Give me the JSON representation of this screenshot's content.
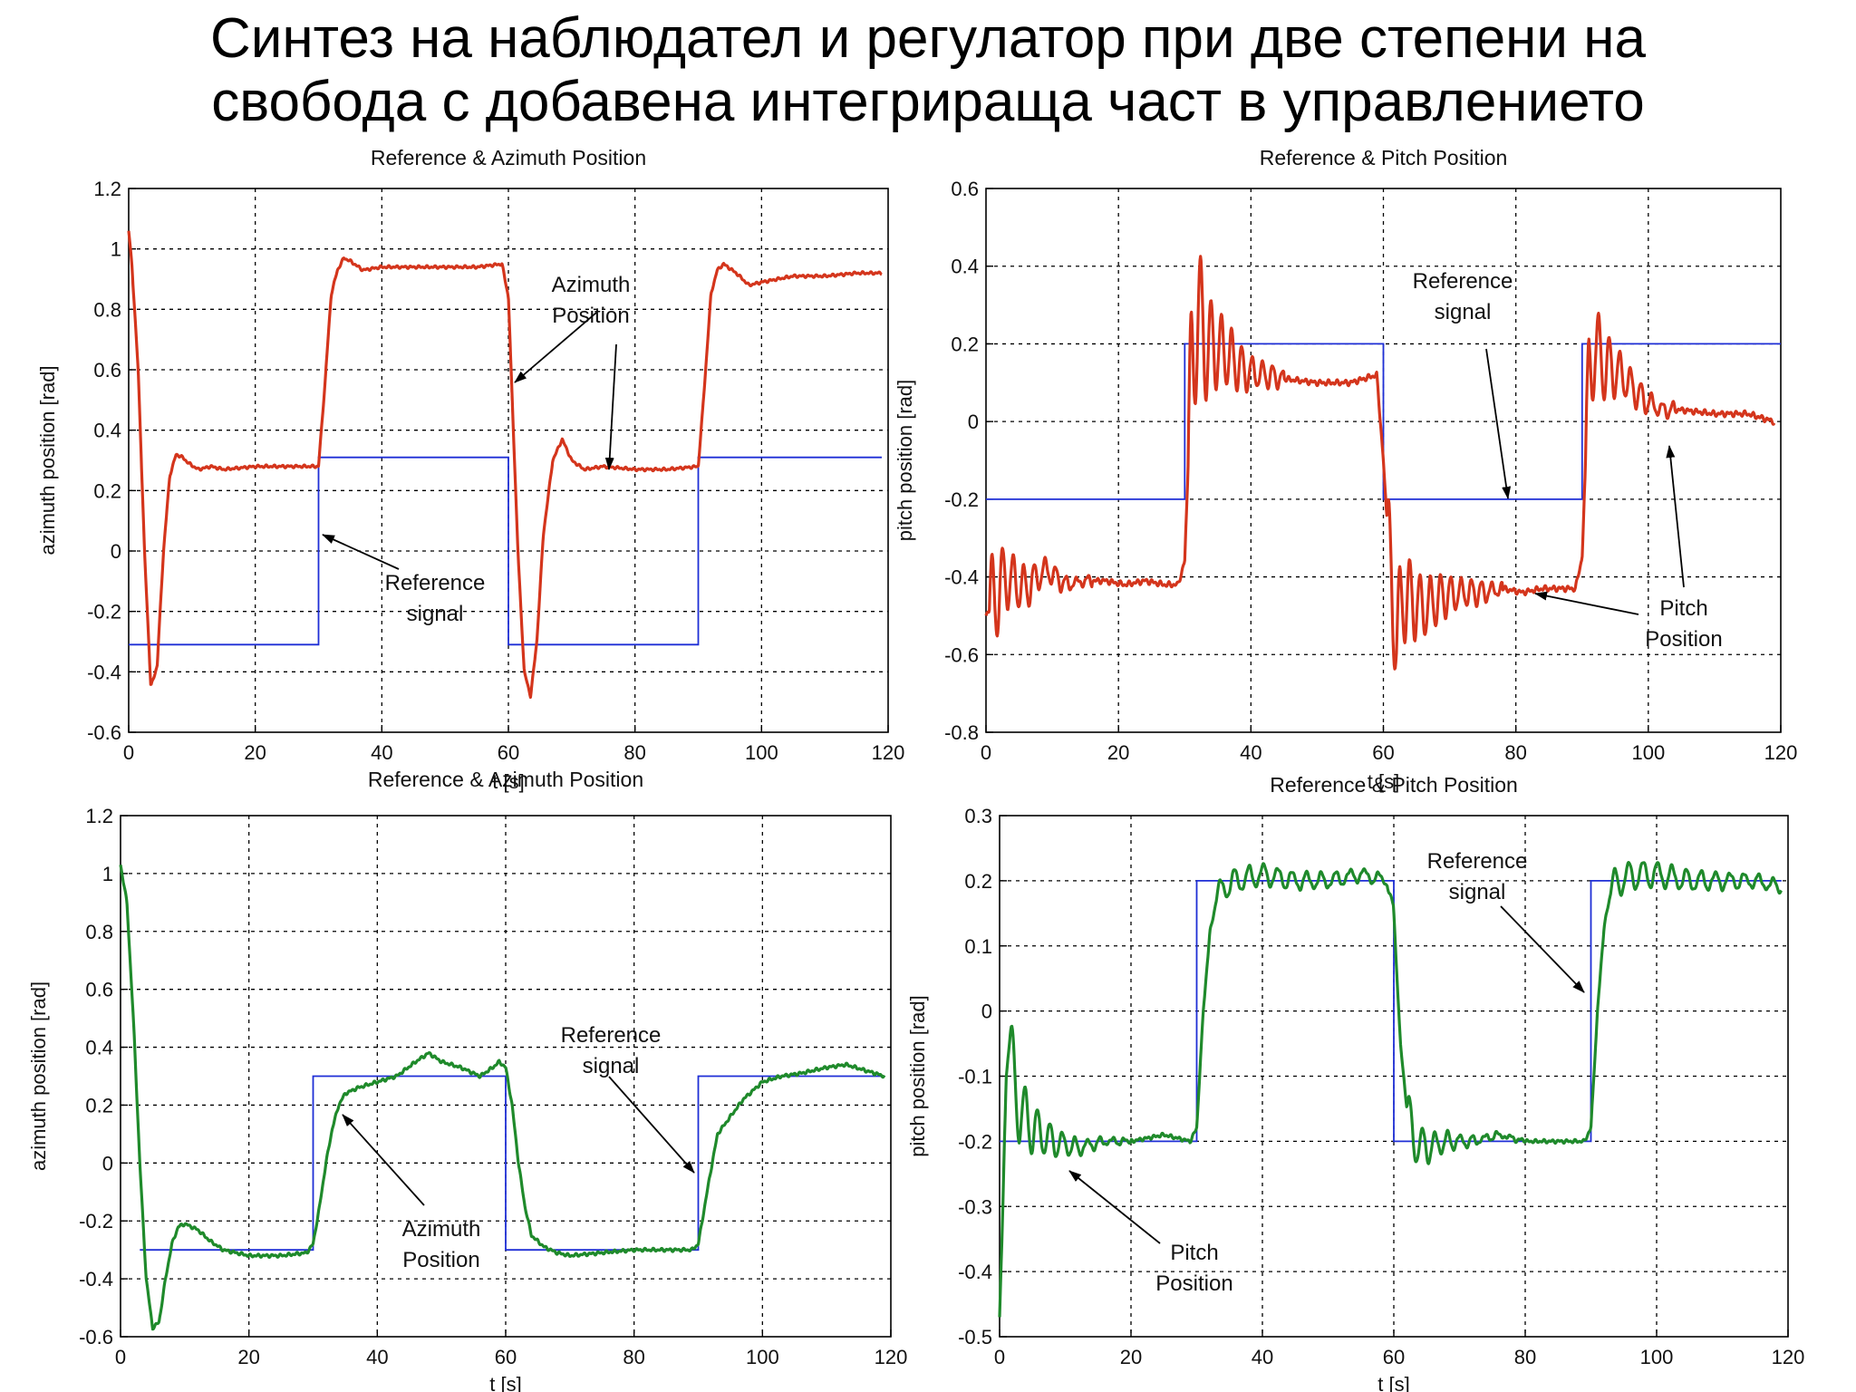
{
  "slide": {
    "title_line1": "Синтез на наблюдател и регулатор при две степени на",
    "title_line2": "свобода с добавена интегрираща част в управлението"
  },
  "colors": {
    "reference": "#1f2fd6",
    "response_top": "#d4351c",
    "response_bottom": "#1f8a2b",
    "grid": "#000000"
  },
  "chart_data": [
    {
      "id": "az_top",
      "type": "line",
      "title": "Reference & Azimuth Position",
      "xlabel": "t [s]",
      "ylabel": "azimuth position [rad]",
      "xlim": [
        0,
        120
      ],
      "ylim": [
        -0.6,
        1.2
      ],
      "xticks": [
        0,
        20,
        40,
        60,
        80,
        100,
        120
      ],
      "yticks": [
        -0.6,
        -0.4,
        -0.2,
        0,
        0.2,
        0.4,
        0.6,
        0.8,
        1,
        1.2
      ],
      "ytick_labels": [
        "-0.6",
        "-0.4",
        "-0.2",
        "0",
        "0.2",
        "0.4",
        "0.6",
        "0.8",
        "1",
        "1.2"
      ],
      "grid": true,
      "series": [
        {
          "name": "Reference signal",
          "color": "reference",
          "step": true,
          "x": [
            0,
            30,
            30,
            60,
            60,
            90,
            90,
            119
          ],
          "y": [
            -0.31,
            -0.31,
            0.31,
            0.31,
            -0.31,
            -0.31,
            0.31,
            0.31
          ]
        },
        {
          "name": "Azimuth Position",
          "color": "response_top",
          "ripple": 0.005,
          "x": [
            0,
            0.5,
            1.5,
            2.5,
            3.5,
            4.5,
            5.5,
            6.5,
            7.5,
            8.5,
            9.5,
            11,
            13,
            15,
            20,
            25,
            30,
            31,
            32,
            33,
            34,
            35,
            37,
            40,
            45,
            50,
            55,
            59,
            60,
            60.5,
            61.5,
            62.5,
            63.5,
            64.5,
            65.5,
            67,
            68.5,
            70,
            72,
            75,
            80,
            85,
            90,
            91,
            92,
            93,
            94,
            96,
            98,
            100,
            105,
            110,
            115,
            119
          ],
          "y": [
            1.06,
            0.95,
            0.6,
            0.0,
            -0.45,
            -0.38,
            0.0,
            0.25,
            0.32,
            0.31,
            0.29,
            0.27,
            0.28,
            0.27,
            0.28,
            0.28,
            0.28,
            0.55,
            0.85,
            0.93,
            0.97,
            0.96,
            0.93,
            0.94,
            0.94,
            0.94,
            0.94,
            0.95,
            0.84,
            0.56,
            0.0,
            -0.4,
            -0.48,
            -0.3,
            0.05,
            0.3,
            0.37,
            0.3,
            0.27,
            0.28,
            0.27,
            0.27,
            0.28,
            0.55,
            0.85,
            0.93,
            0.95,
            0.92,
            0.88,
            0.89,
            0.91,
            0.91,
            0.92,
            0.92
          ]
        }
      ],
      "annotations": [
        {
          "key": "a",
          "lines": [
            "Azimuth",
            "Position"
          ]
        },
        {
          "key": "b",
          "lines": [
            "Reference",
            "signal"
          ]
        }
      ]
    },
    {
      "id": "pitch_top",
      "type": "line",
      "title": "Reference & Pitch Position",
      "xlabel": "t [s]",
      "ylabel": "pitch position [rad]",
      "xlim": [
        0,
        120
      ],
      "ylim": [
        -0.8,
        0.6
      ],
      "xticks": [
        0,
        20,
        40,
        60,
        80,
        100,
        120
      ],
      "yticks": [
        -0.8,
        -0.6,
        -0.4,
        -0.2,
        0,
        0.2,
        0.4,
        0.6
      ],
      "ytick_labels": [
        "-0.8",
        "-0.6",
        "-0.4",
        "-0.2",
        "0",
        "0.2",
        "0.4",
        "0.6"
      ],
      "grid": true,
      "series": [
        {
          "name": "Reference signal",
          "color": "reference",
          "step": true,
          "x": [
            0,
            30,
            30,
            60,
            60,
            90,
            90,
            120
          ],
          "y": [
            -0.2,
            -0.2,
            0.2,
            0.2,
            -0.2,
            -0.2,
            0.2,
            0.2
          ]
        },
        {
          "name": "Pitch Position",
          "color": "response_top",
          "ripple": 0.008,
          "x": [
            0,
            3,
            6,
            9,
            12,
            15,
            18,
            21,
            24,
            27,
            29,
            30,
            31,
            32,
            33,
            36,
            39,
            42,
            45,
            50,
            55,
            59,
            60,
            61,
            62,
            63,
            66,
            69,
            72,
            75,
            78,
            81,
            84,
            87,
            89,
            90,
            91,
            92,
            93,
            96,
            99,
            102,
            105,
            110,
            115,
            119
          ],
          "y": [
            -0.5,
            -0.4,
            -0.43,
            -0.38,
            -0.42,
            -0.41,
            -0.41,
            -0.42,
            -0.41,
            -0.42,
            -0.42,
            -0.36,
            0.1,
            0.3,
            0.2,
            0.18,
            0.13,
            0.12,
            0.11,
            0.1,
            0.1,
            0.12,
            -0.1,
            -0.4,
            -0.55,
            -0.45,
            -0.48,
            -0.45,
            -0.44,
            -0.44,
            -0.43,
            -0.44,
            -0.43,
            -0.43,
            -0.43,
            -0.35,
            0.1,
            0.2,
            0.15,
            0.12,
            0.06,
            0.03,
            0.03,
            0.02,
            0.02,
            0.0
          ]
        },
        {
          "name": "Pitch oscillation envelope",
          "color": "response_top",
          "oscillation": true,
          "segments": [
            {
              "t0": 0.5,
              "t1": 16,
              "amp0": 0.13,
              "period": 1.6,
              "decay": 6
            },
            {
              "t0": 30.5,
              "t1": 45,
              "amp0": 0.22,
              "period": 1.55,
              "decay": 6
            },
            {
              "t0": 60.5,
              "t1": 78,
              "amp0": 0.16,
              "period": 1.55,
              "decay": 8
            },
            {
              "t0": 90.5,
              "t1": 104,
              "amp0": 0.14,
              "period": 1.6,
              "decay": 6
            }
          ]
        }
      ],
      "annotations": [
        {
          "key": "a",
          "lines": [
            "Reference",
            "signal"
          ]
        },
        {
          "key": "b",
          "lines": [
            "Pitch",
            "Position"
          ]
        }
      ]
    },
    {
      "id": "az_bottom",
      "type": "line",
      "title": "Reference & Azimuth Position",
      "xlabel": "t [s]",
      "ylabel": "azimuth position [rad]",
      "xlim": [
        0,
        120
      ],
      "ylim": [
        -0.6,
        1.2
      ],
      "xticks": [
        0,
        20,
        40,
        60,
        80,
        100,
        120
      ],
      "yticks": [
        -0.6,
        -0.4,
        -0.2,
        0,
        0.2,
        0.4,
        0.6,
        0.8,
        1,
        1.2
      ],
      "ytick_labels": [
        "-0.6",
        "-0.4",
        "-0.2",
        "0",
        "0.2",
        "0.4",
        "0.6",
        "0.8",
        "1",
        "1.2"
      ],
      "grid": true,
      "series": [
        {
          "name": "Reference signal",
          "color": "reference",
          "step": true,
          "x": [
            3,
            30,
            30,
            60,
            60,
            90,
            90,
            119
          ],
          "y": [
            -0.3,
            -0.3,
            0.3,
            0.3,
            -0.3,
            -0.3,
            0.3,
            0.3
          ]
        },
        {
          "name": "Azimuth Position",
          "color": "response_bottom",
          "ripple": 0.006,
          "x": [
            0,
            1,
            2,
            3,
            4,
            5,
            6,
            7,
            8,
            9,
            10,
            12,
            14,
            16,
            18,
            20,
            25,
            29,
            30,
            31,
            32,
            33,
            34,
            35,
            37,
            40,
            43,
            46,
            48,
            50,
            53,
            56,
            58,
            59,
            60,
            61,
            62,
            63,
            64,
            66,
            68,
            70,
            75,
            80,
            85,
            89,
            90,
            91,
            92,
            93,
            95,
            97,
            100,
            103,
            106,
            110,
            113,
            116,
            119
          ],
          "y": [
            1.03,
            0.9,
            0.5,
            0.0,
            -0.4,
            -0.57,
            -0.55,
            -0.4,
            -0.28,
            -0.22,
            -0.21,
            -0.23,
            -0.27,
            -0.3,
            -0.31,
            -0.32,
            -0.32,
            -0.31,
            -0.28,
            -0.15,
            0.0,
            0.12,
            0.2,
            0.24,
            0.26,
            0.28,
            0.3,
            0.35,
            0.38,
            0.35,
            0.33,
            0.3,
            0.33,
            0.35,
            0.33,
            0.2,
            0.0,
            -0.15,
            -0.25,
            -0.29,
            -0.31,
            -0.32,
            -0.31,
            -0.3,
            -0.3,
            -0.3,
            -0.28,
            -0.15,
            -0.02,
            0.1,
            0.16,
            0.22,
            0.28,
            0.3,
            0.31,
            0.33,
            0.34,
            0.32,
            0.3
          ]
        }
      ],
      "annotations": [
        {
          "key": "a",
          "lines": [
            "Reference",
            "signal"
          ]
        },
        {
          "key": "b",
          "lines": [
            "Azimuth",
            "Position"
          ]
        }
      ]
    },
    {
      "id": "pitch_bottom",
      "type": "line",
      "title": "Reference & Pitch Position",
      "xlabel": "t [s]",
      "ylabel": "pitch position [rad]",
      "xlim": [
        0,
        120
      ],
      "ylim": [
        -0.5,
        0.3
      ],
      "xticks": [
        0,
        20,
        40,
        60,
        80,
        100,
        120
      ],
      "yticks": [
        -0.5,
        -0.4,
        -0.3,
        -0.2,
        -0.1,
        0,
        0.1,
        0.2,
        0.3
      ],
      "ytick_labels": [
        "-0.5",
        "-0.4",
        "-0.3",
        "-0.2",
        "-0.1",
        "0",
        "0.1",
        "0.2",
        "0.3"
      ],
      "grid": true,
      "series": [
        {
          "name": "Reference signal",
          "color": "reference",
          "step": true,
          "x": [
            0,
            30,
            30,
            60,
            60,
            90,
            90,
            119
          ],
          "y": [
            -0.2,
            -0.2,
            0.2,
            0.2,
            -0.2,
            -0.2,
            0.2,
            0.2
          ]
        },
        {
          "name": "Pitch Position",
          "color": "response_bottom",
          "ripple": 0.003,
          "x": [
            0,
            0.5,
            1,
            1.5,
            2,
            3,
            5,
            8,
            12,
            16,
            20,
            25,
            29,
            30,
            31,
            32,
            33,
            34,
            36,
            40,
            45,
            50,
            55,
            59,
            60,
            61,
            62,
            63,
            65,
            68,
            72,
            76,
            80,
            85,
            89,
            90,
            91,
            92,
            93,
            94,
            97,
            100,
            105,
            110,
            115,
            119
          ],
          "y": [
            -0.47,
            -0.3,
            -0.1,
            -0.05,
            -0.1,
            -0.15,
            -0.18,
            -0.2,
            -0.21,
            -0.2,
            -0.2,
            -0.19,
            -0.2,
            -0.18,
            0.0,
            0.12,
            0.17,
            0.19,
            0.2,
            0.21,
            0.2,
            0.2,
            0.21,
            0.2,
            0.15,
            -0.05,
            -0.15,
            -0.2,
            -0.21,
            -0.2,
            -0.2,
            -0.19,
            -0.2,
            -0.2,
            -0.2,
            -0.18,
            0.0,
            0.13,
            0.18,
            0.2,
            0.21,
            0.21,
            0.2,
            0.2,
            0.2,
            0.19
          ]
        },
        {
          "name": "Pitch oscillation envelope",
          "color": "response_bottom",
          "oscillation": true,
          "segments": [
            {
              "t0": 1.5,
              "t1": 20,
              "amp0": 0.07,
              "period": 1.9,
              "decay": 6
            },
            {
              "t0": 33,
              "t1": 60,
              "amp0": 0.02,
              "period": 2.2,
              "decay": 30
            },
            {
              "t0": 62,
              "t1": 80,
              "amp0": 0.04,
              "period": 1.9,
              "decay": 6
            },
            {
              "t0": 93,
              "t1": 119,
              "amp0": 0.025,
              "period": 2.2,
              "decay": 25
            }
          ]
        }
      ],
      "annotations": [
        {
          "key": "a",
          "lines": [
            "Reference",
            "signal"
          ]
        },
        {
          "key": "b",
          "lines": [
            "Pitch",
            "Position"
          ]
        }
      ]
    }
  ]
}
